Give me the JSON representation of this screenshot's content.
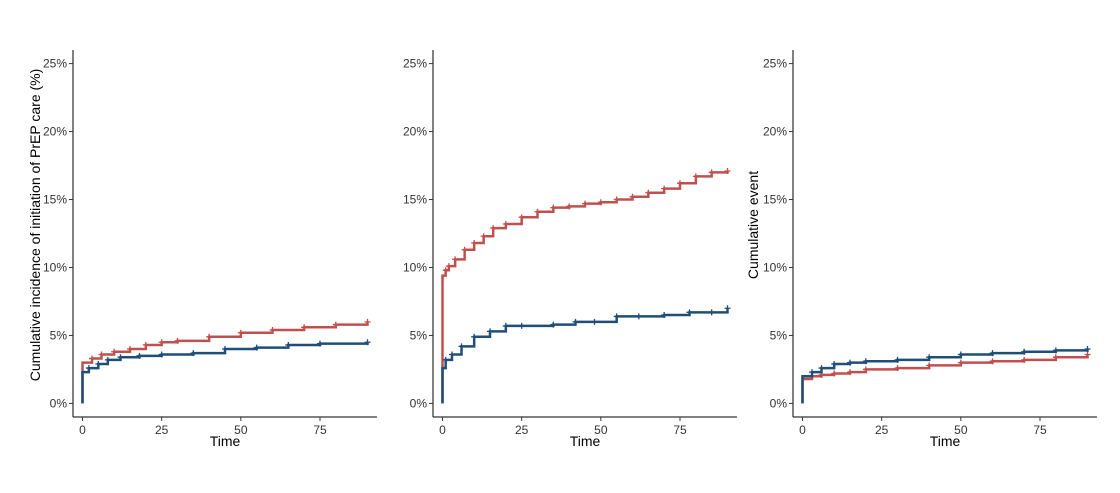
{
  "colors": {
    "red": "#c0504d",
    "blue": "#1f4e79"
  },
  "chart_data": [
    {
      "type": "line",
      "step": true,
      "xlabel": "Time",
      "ylabel": "Cumulative incidence of initiation of PrEP care (%)",
      "xlim": [
        -3,
        93
      ],
      "ylim": [
        -1,
        26
      ],
      "xticks": [
        0,
        25,
        50,
        75
      ],
      "yticks": [
        0,
        5,
        10,
        15,
        20,
        25
      ],
      "ytick_labels": [
        "0%",
        "5%",
        "10%",
        "15%",
        "20%",
        "25%"
      ],
      "grid": false,
      "series": [
        {
          "color": "#c0504d",
          "x": [
            0,
            0,
            3,
            6,
            10,
            15,
            20,
            25,
            30,
            40,
            50,
            60,
            70,
            80,
            90
          ],
          "y": [
            0,
            3.0,
            3.3,
            3.6,
            3.8,
            4.0,
            4.3,
            4.5,
            4.6,
            4.9,
            5.2,
            5.4,
            5.6,
            5.8,
            6.0
          ]
        },
        {
          "color": "#1f4e79",
          "x": [
            0,
            0,
            2,
            5,
            8,
            12,
            18,
            25,
            35,
            45,
            55,
            65,
            75,
            90
          ],
          "y": [
            0,
            2.3,
            2.6,
            2.9,
            3.2,
            3.4,
            3.5,
            3.6,
            3.7,
            4.0,
            4.1,
            4.3,
            4.4,
            4.5
          ]
        }
      ]
    },
    {
      "type": "line",
      "step": true,
      "xlabel": "Time",
      "ylabel": "",
      "xlim": [
        -3,
        93
      ],
      "ylim": [
        -1,
        26
      ],
      "xticks": [
        0,
        25,
        50,
        75
      ],
      "yticks": [
        0,
        5,
        10,
        15,
        20,
        25
      ],
      "ytick_labels": [
        "0%",
        "5%",
        "10%",
        "15%",
        "20%",
        "25%"
      ],
      "grid": false,
      "series": [
        {
          "color": "#c0504d",
          "x": [
            0,
            0,
            1,
            2,
            4,
            7,
            10,
            13,
            16,
            20,
            25,
            30,
            35,
            40,
            45,
            50,
            55,
            60,
            65,
            70,
            75,
            80,
            85,
            90
          ],
          "y": [
            0,
            9.4,
            9.8,
            10.1,
            10.6,
            11.3,
            11.8,
            12.3,
            12.9,
            13.2,
            13.7,
            14.1,
            14.4,
            14.5,
            14.7,
            14.8,
            15.0,
            15.2,
            15.5,
            15.8,
            16.2,
            16.7,
            17.0,
            17.1
          ]
        },
        {
          "color": "#1f4e79",
          "x": [
            0,
            0,
            1,
            3,
            6,
            10,
            15,
            20,
            25,
            35,
            42,
            48,
            55,
            62,
            70,
            78,
            85,
            90
          ],
          "y": [
            0,
            2.6,
            3.2,
            3.6,
            4.2,
            4.9,
            5.3,
            5.7,
            5.7,
            5.8,
            6.0,
            6.0,
            6.4,
            6.4,
            6.5,
            6.7,
            6.7,
            7.0
          ]
        }
      ]
    },
    {
      "type": "line",
      "step": true,
      "xlabel": "Time",
      "ylabel": "Cumulative event",
      "xlim": [
        -3,
        93
      ],
      "ylim": [
        -1,
        26
      ],
      "xticks": [
        0,
        25,
        50,
        75
      ],
      "yticks": [
        0,
        5,
        10,
        15,
        20,
        25
      ],
      "ytick_labels": [
        "0%",
        "5%",
        "10%",
        "15%",
        "20%",
        "25%"
      ],
      "grid": false,
      "series": [
        {
          "color": "#c0504d",
          "x": [
            0,
            0,
            3,
            6,
            10,
            15,
            20,
            30,
            40,
            50,
            60,
            70,
            80,
            90
          ],
          "y": [
            0,
            1.8,
            2.0,
            2.1,
            2.2,
            2.3,
            2.5,
            2.6,
            2.8,
            3.0,
            3.1,
            3.2,
            3.4,
            3.6
          ]
        },
        {
          "color": "#1f4e79",
          "x": [
            0,
            0,
            3,
            6,
            10,
            15,
            20,
            30,
            40,
            50,
            60,
            70,
            80,
            90
          ],
          "y": [
            0,
            2.0,
            2.3,
            2.6,
            2.9,
            3.0,
            3.1,
            3.2,
            3.4,
            3.6,
            3.7,
            3.8,
            3.9,
            4.0
          ]
        }
      ]
    }
  ]
}
